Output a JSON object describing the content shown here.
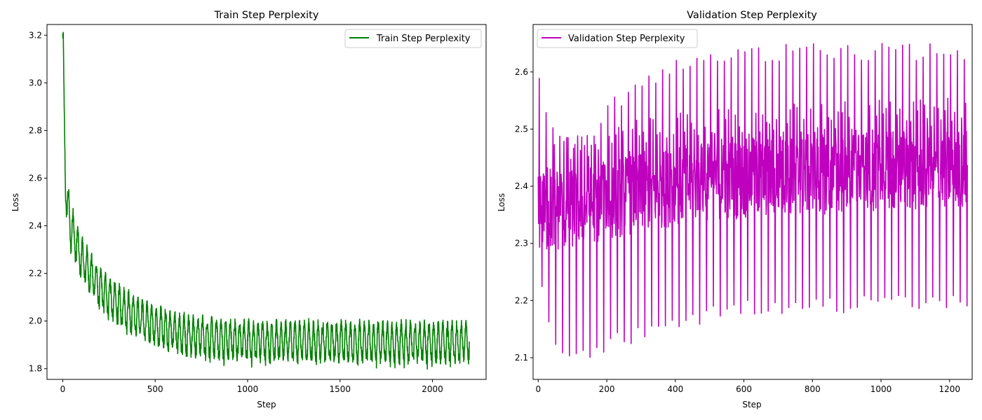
{
  "chart_data": [
    {
      "type": "line",
      "title": "Train Step Perplexity",
      "xlabel": "Step",
      "ylabel": "Loss",
      "xlim": [
        -85,
        2290
      ],
      "ylim": [
        1.755,
        3.245
      ],
      "xticks": [
        0,
        500,
        1000,
        1500,
        2000
      ],
      "yticks": [
        1.8,
        2.0,
        2.2,
        2.4,
        2.6,
        2.8,
        3.0,
        3.2
      ],
      "legend_position": "upper right",
      "grid": false,
      "series": [
        {
          "name": "Train Step Perplexity",
          "color": "#008000",
          "x_range": [
            0,
            2199
          ],
          "trend": [
            [
              0,
              3.2
            ],
            [
              3,
              3.12
            ],
            [
              8,
              2.8
            ],
            [
              15,
              2.6
            ],
            [
              30,
              2.45
            ],
            [
              50,
              2.38
            ],
            [
              100,
              2.27
            ],
            [
              150,
              2.2
            ],
            [
              200,
              2.14
            ],
            [
              300,
              2.07
            ],
            [
              400,
              2.02
            ],
            [
              500,
              1.98
            ],
            [
              600,
              1.955
            ],
            [
              700,
              1.94
            ],
            [
              800,
              1.93
            ],
            [
              1000,
              1.92
            ],
            [
              1500,
              1.915
            ],
            [
              2000,
              1.912
            ],
            [
              2199,
              1.91
            ]
          ],
          "oscillation_amplitude": 0.07,
          "oscillation_period_steps": 25
        }
      ]
    },
    {
      "type": "line",
      "title": "Validation Step Perplexity",
      "xlabel": "Step",
      "ylabel": "Loss",
      "xlim": [
        -15,
        1266
      ],
      "ylim": [
        2.062,
        2.683
      ],
      "xticks": [
        0,
        200,
        400,
        600,
        800,
        1000,
        1200
      ],
      "yticks": [
        2.1,
        2.2,
        2.3,
        2.4,
        2.5,
        2.6
      ],
      "legend_position": "upper left",
      "grid": false,
      "series": [
        {
          "name": "Validation Step Perplexity",
          "color": "#bf00bf",
          "x_range": [
            0,
            1252
          ],
          "band": [
            [
              0,
              2.27,
              2.6
            ],
            [
              20,
              2.18,
              2.55
            ],
            [
              60,
              2.09,
              2.5
            ],
            [
              100,
              2.09,
              2.48
            ],
            [
              150,
              2.1,
              2.5
            ],
            [
              200,
              2.11,
              2.55
            ],
            [
              300,
              2.13,
              2.59
            ],
            [
              400,
              2.15,
              2.62
            ],
            [
              500,
              2.16,
              2.63
            ],
            [
              600,
              2.17,
              2.645
            ],
            [
              800,
              2.175,
              2.65
            ],
            [
              1000,
              2.18,
              2.65
            ],
            [
              1252,
              2.18,
              2.65
            ]
          ],
          "core_band": [
            [
              0,
              2.28,
              2.42
            ],
            [
              100,
              2.29,
              2.43
            ],
            [
              300,
              2.32,
              2.46
            ],
            [
              500,
              2.34,
              2.48
            ],
            [
              800,
              2.35,
              2.49
            ],
            [
              1252,
              2.36,
              2.5
            ]
          ],
          "spike_period_steps": 20
        }
      ]
    }
  ]
}
